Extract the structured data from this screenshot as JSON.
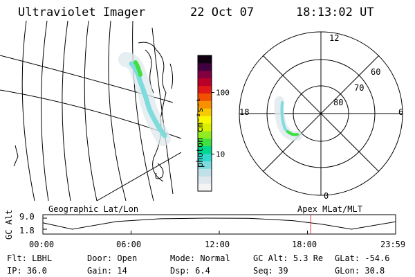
{
  "header": {
    "instrument": "Ultraviolet Imager",
    "date": "22 Oct 07",
    "time": "18:13:02 UT"
  },
  "colorbar": {
    "label": "photon cm⁻²s⁻¹",
    "ticks": [
      {
        "value": 100,
        "label": "100"
      },
      {
        "value": 10,
        "label": "10"
      }
    ],
    "range": [
      2.5,
      400
    ],
    "colors": [
      "#f4f4f4",
      "#dfe8ec",
      "#bfe0e6",
      "#80dcdc",
      "#30d8cc",
      "#00d890",
      "#40e040",
      "#90ec20",
      "#d8f000",
      "#f8f800",
      "#f8c800",
      "#f89000",
      "#f05000",
      "#e01818",
      "#b80028",
      "#800040",
      "#400040",
      "#100010"
    ]
  },
  "polar_plot": {
    "mlt_labels": [
      {
        "label": "12",
        "pos": "top"
      },
      {
        "label": "18",
        "pos": "left"
      },
      {
        "label": "6",
        "pos": "right"
      },
      {
        "label": "0",
        "pos": "bottom"
      }
    ],
    "lat_labels": [
      "60",
      "70",
      "80"
    ]
  },
  "timeline": {
    "ylabel": "GC Alt",
    "left_label": "Geographic Lat/Lon",
    "right_label": "Apex MLat/MLT",
    "ytick_top": "9.0",
    "ytick_bottom": "1.8",
    "yrange": [
      1.8,
      9.0
    ],
    "xticks": [
      "00:00",
      "06:00",
      "12:00",
      "18:00",
      "23:59"
    ],
    "current_time_hours": 18.22,
    "current_marker_color": "#e03030",
    "altitude_curve": [
      {
        "t": 0,
        "alt": 6.0
      },
      {
        "t": 2,
        "alt": 1.8
      },
      {
        "t": 5,
        "alt": 6.8
      },
      {
        "t": 8,
        "alt": 8.6
      },
      {
        "t": 11,
        "alt": 9.0
      },
      {
        "t": 14,
        "alt": 8.9
      },
      {
        "t": 17,
        "alt": 7.4
      },
      {
        "t": 19,
        "alt": 5.0
      },
      {
        "t": 21,
        "alt": 1.8
      },
      {
        "t": 23.98,
        "alt": 6.6
      }
    ]
  },
  "info": {
    "row1": [
      {
        "key": "Flt:",
        "value": "LBHL"
      },
      {
        "key": "Door:",
        "value": "Open"
      },
      {
        "key": "Mode:",
        "value": "Normal"
      },
      {
        "key": "GC Alt:",
        "value": "5.3 Re"
      },
      {
        "key": "GLat:",
        "value": "-54.6"
      }
    ],
    "row2": [
      {
        "key": "IP:",
        "value": "36.0"
      },
      {
        "key": "Gain:",
        "value": "14"
      },
      {
        "key": "Dsp:",
        "value": "6.4"
      },
      {
        "key": "Seq:",
        "value": "39"
      },
      {
        "key": "GLon:",
        "value": "30.8"
      }
    ]
  }
}
